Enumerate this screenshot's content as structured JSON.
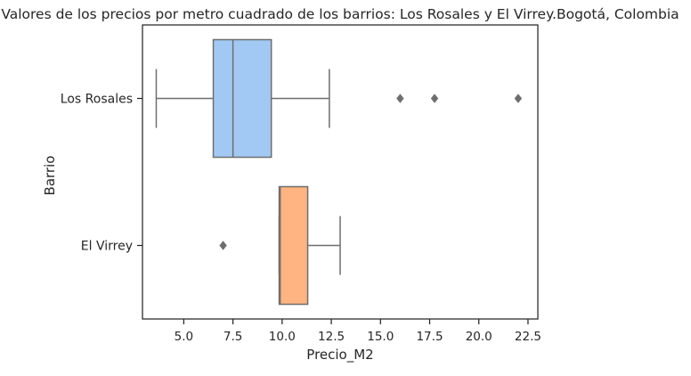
{
  "chart_data": {
    "type": "boxplot",
    "orientation": "horizontal",
    "title": "Valores de los precios por metro cuadrado de los barrios: Los Rosales y El Virrey.Bogotá, Colombia",
    "xlabel": "Precio_M2",
    "ylabel": "Barrio",
    "xlim": [
      2.9,
      23.0
    ],
    "xticks": [
      5.0,
      7.5,
      10.0,
      12.5,
      15.0,
      17.5,
      20.0,
      22.5
    ],
    "xtick_labels": [
      "5.0",
      "7.5",
      "10.0",
      "12.5",
      "15.0",
      "17.5",
      "20.0",
      "22.5"
    ],
    "grid": false,
    "categories": [
      "Los Rosales",
      "El Virrey"
    ],
    "boxes": [
      {
        "category": "Los Rosales",
        "whisker_low": 3.6,
        "q1": 6.5,
        "median": 7.5,
        "q3": 9.45,
        "whisker_high": 12.4,
        "outliers": [
          16.0,
          17.75,
          22.0
        ],
        "color": "#a1c9f4"
      },
      {
        "category": "El Virrey",
        "whisker_low": 9.85,
        "q1": 9.85,
        "median": 9.9,
        "q3": 11.3,
        "whisker_high": 12.95,
        "outliers": [
          7.0
        ],
        "color": "#ffb482"
      }
    ],
    "line_color": "#6e6e6e"
  }
}
